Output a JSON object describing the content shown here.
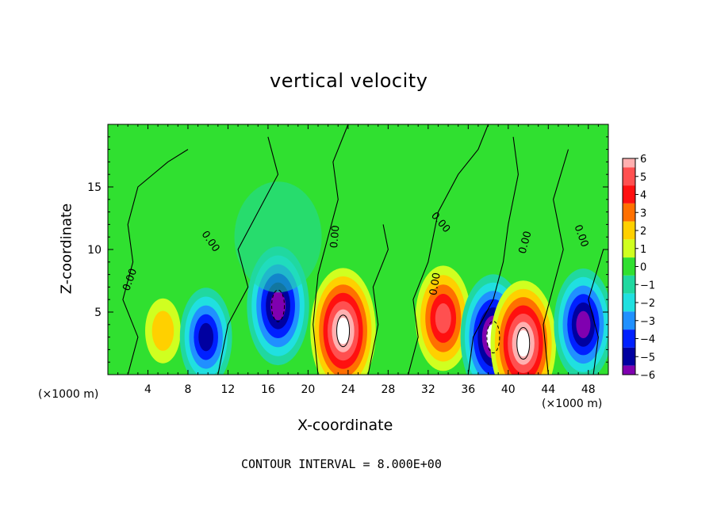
{
  "chart_data": {
    "type": "heatmap",
    "title": "vertical velocity",
    "xlabel": "X-coordinate",
    "ylabel": "Z-coordinate",
    "x_unit_label": "(×1000 m)",
    "xlim": [
      0,
      50
    ],
    "ylim": [
      0,
      20
    ],
    "x_ticks": [
      "4",
      "8",
      "12",
      "16",
      "20",
      "24",
      "28",
      "32",
      "36",
      "40",
      "44",
      "48"
    ],
    "y_ticks": [
      "5",
      "10",
      "15"
    ],
    "colorbar": {
      "range": [
        -6,
        6
      ],
      "labels": [
        "6",
        "5",
        "4",
        "3",
        "2",
        "1",
        "0",
        "−1",
        "−2",
        "−3",
        "−4",
        "−5",
        "−6"
      ],
      "colors": [
        "#ffb0b0",
        "#ff5050",
        "#ff1010",
        "#ff7000",
        "#ffd000",
        "#d0ff20",
        "#30e030",
        "#20d8a0",
        "#20e0e0",
        "#2090ff",
        "#0020ff",
        "#0000a0",
        "#8000b0"
      ]
    },
    "contour_label": "0.00",
    "contour_interval_text": "CONTOUR INTERVAL = 8.000E+00",
    "features": [
      {
        "x": 5.5,
        "z": 3.5,
        "w": 2.0
      },
      {
        "x": 9.8,
        "z": 3.0,
        "w": -4.5
      },
      {
        "x": 17.0,
        "z": 5.5,
        "w": -6.0
      },
      {
        "x": 23.5,
        "z": 3.5,
        "w": 6.5
      },
      {
        "x": 33.5,
        "z": 4.5,
        "w": 5.0
      },
      {
        "x": 38.5,
        "z": 3.0,
        "w": -6.5
      },
      {
        "x": 41.5,
        "z": 2.5,
        "w": 6.5
      },
      {
        "x": 47.5,
        "z": 4.0,
        "w": -5.5
      }
    ]
  }
}
